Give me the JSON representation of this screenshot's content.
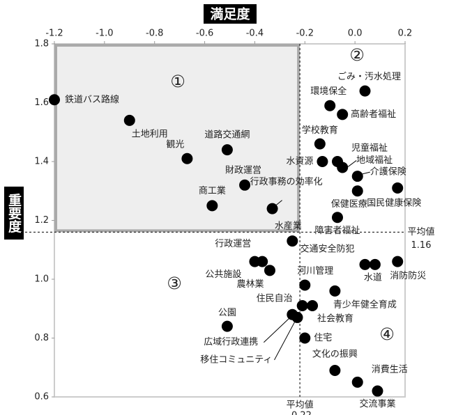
{
  "chart_data": {
    "type": "scatter",
    "x_label": "満足度",
    "y_label": "重要度",
    "xlim": [
      -1.2,
      0.2
    ],
    "ylim": [
      0.6,
      1.8
    ],
    "xticks": [
      -1.2,
      {
        "value": -1,
        "label": "-1.0"
      },
      -0.8,
      -0.6,
      -0.4,
      -0.2,
      {
        "value": 0,
        "label": "0.0"
      },
      0.2
    ],
    "yticks": [
      0.6,
      0.8,
      {
        "value": 1,
        "label": "1.0"
      },
      1.2,
      1.4,
      1.6,
      1.8
    ],
    "x_mean": {
      "value": -0.22,
      "label": "平均値",
      "value_label": "-0.22"
    },
    "y_mean": {
      "value": 1.16,
      "label": "平均値",
      "value_label": "1.16"
    },
    "quadrants": [
      "①",
      "②",
      "③",
      "④"
    ],
    "color": "#000000",
    "point_labels": [
      "鉄道バス路線",
      "土地利用",
      "観光",
      "道路交通網",
      "財政運営",
      "商工業",
      "行政事務の効率化",
      "ごみ・汚水処理",
      "環境保全",
      "高齢者福祉",
      "学校教育",
      "児童福祉",
      "水資源",
      "地域福祉",
      "介護保険",
      "国民健康保険",
      "保健医療",
      "障害者福祉",
      "水産業",
      "行政運営",
      "公共施設",
      "農林業",
      "交通安全防犯",
      "水道",
      "消防防災",
      "河川管理",
      "青少年健全育成",
      "住民自治",
      "社会教育",
      "公園",
      "広域行政連携",
      "移住コミュニティ",
      "住宅",
      "文化の振興",
      "消費生活",
      "交流事業"
    ],
    "x": [
      -1.2,
      -0.9,
      -0.67,
      -0.51,
      -0.44,
      -0.57,
      -0.33,
      0.04,
      -0.1,
      -0.05,
      -0.14,
      -0.07,
      -0.13,
      -0.05,
      0.01,
      0.17,
      0.01,
      -0.07,
      -0.25,
      -0.37,
      -0.4,
      -0.34,
      0.04,
      0.08,
      0.17,
      -0.2,
      -0.08,
      -0.21,
      -0.17,
      -0.51,
      -0.25,
      -0.23,
      -0.2,
      -0.08,
      0.01,
      0.09
    ],
    "values": [
      1.61,
      1.54,
      1.41,
      1.44,
      1.32,
      1.25,
      1.24,
      1.64,
      1.59,
      1.56,
      1.46,
      1.4,
      1.4,
      1.38,
      1.35,
      1.31,
      1.3,
      1.21,
      1.13,
      1.06,
      1.06,
      1.03,
      1.05,
      1.05,
      1.06,
      0.98,
      0.96,
      0.91,
      0.91,
      0.84,
      0.88,
      0.87,
      0.8,
      0.69,
      0.65,
      0.62
    ]
  }
}
